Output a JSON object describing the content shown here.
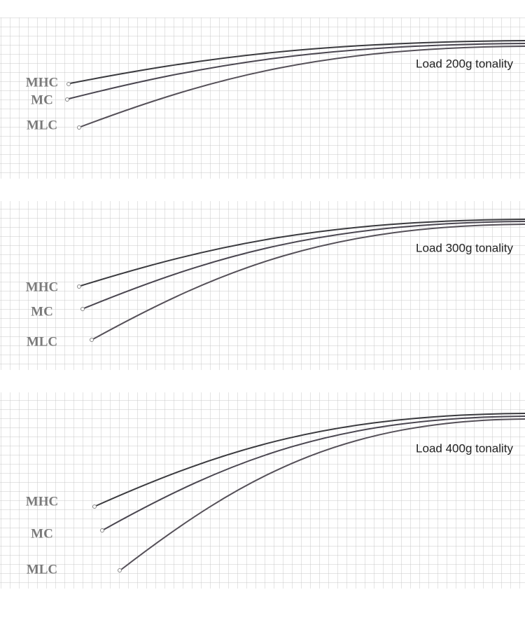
{
  "panels": [
    {
      "caption": "Load 200g tonality",
      "rods": [
        "MHC",
        "MC",
        "MLC"
      ]
    },
    {
      "caption": "Load 300g tonality",
      "rods": [
        "MHC",
        "MC",
        "MLC"
      ]
    },
    {
      "caption": "Load 400g tonality",
      "rods": [
        "MHC",
        "MC",
        "MLC"
      ]
    }
  ]
}
